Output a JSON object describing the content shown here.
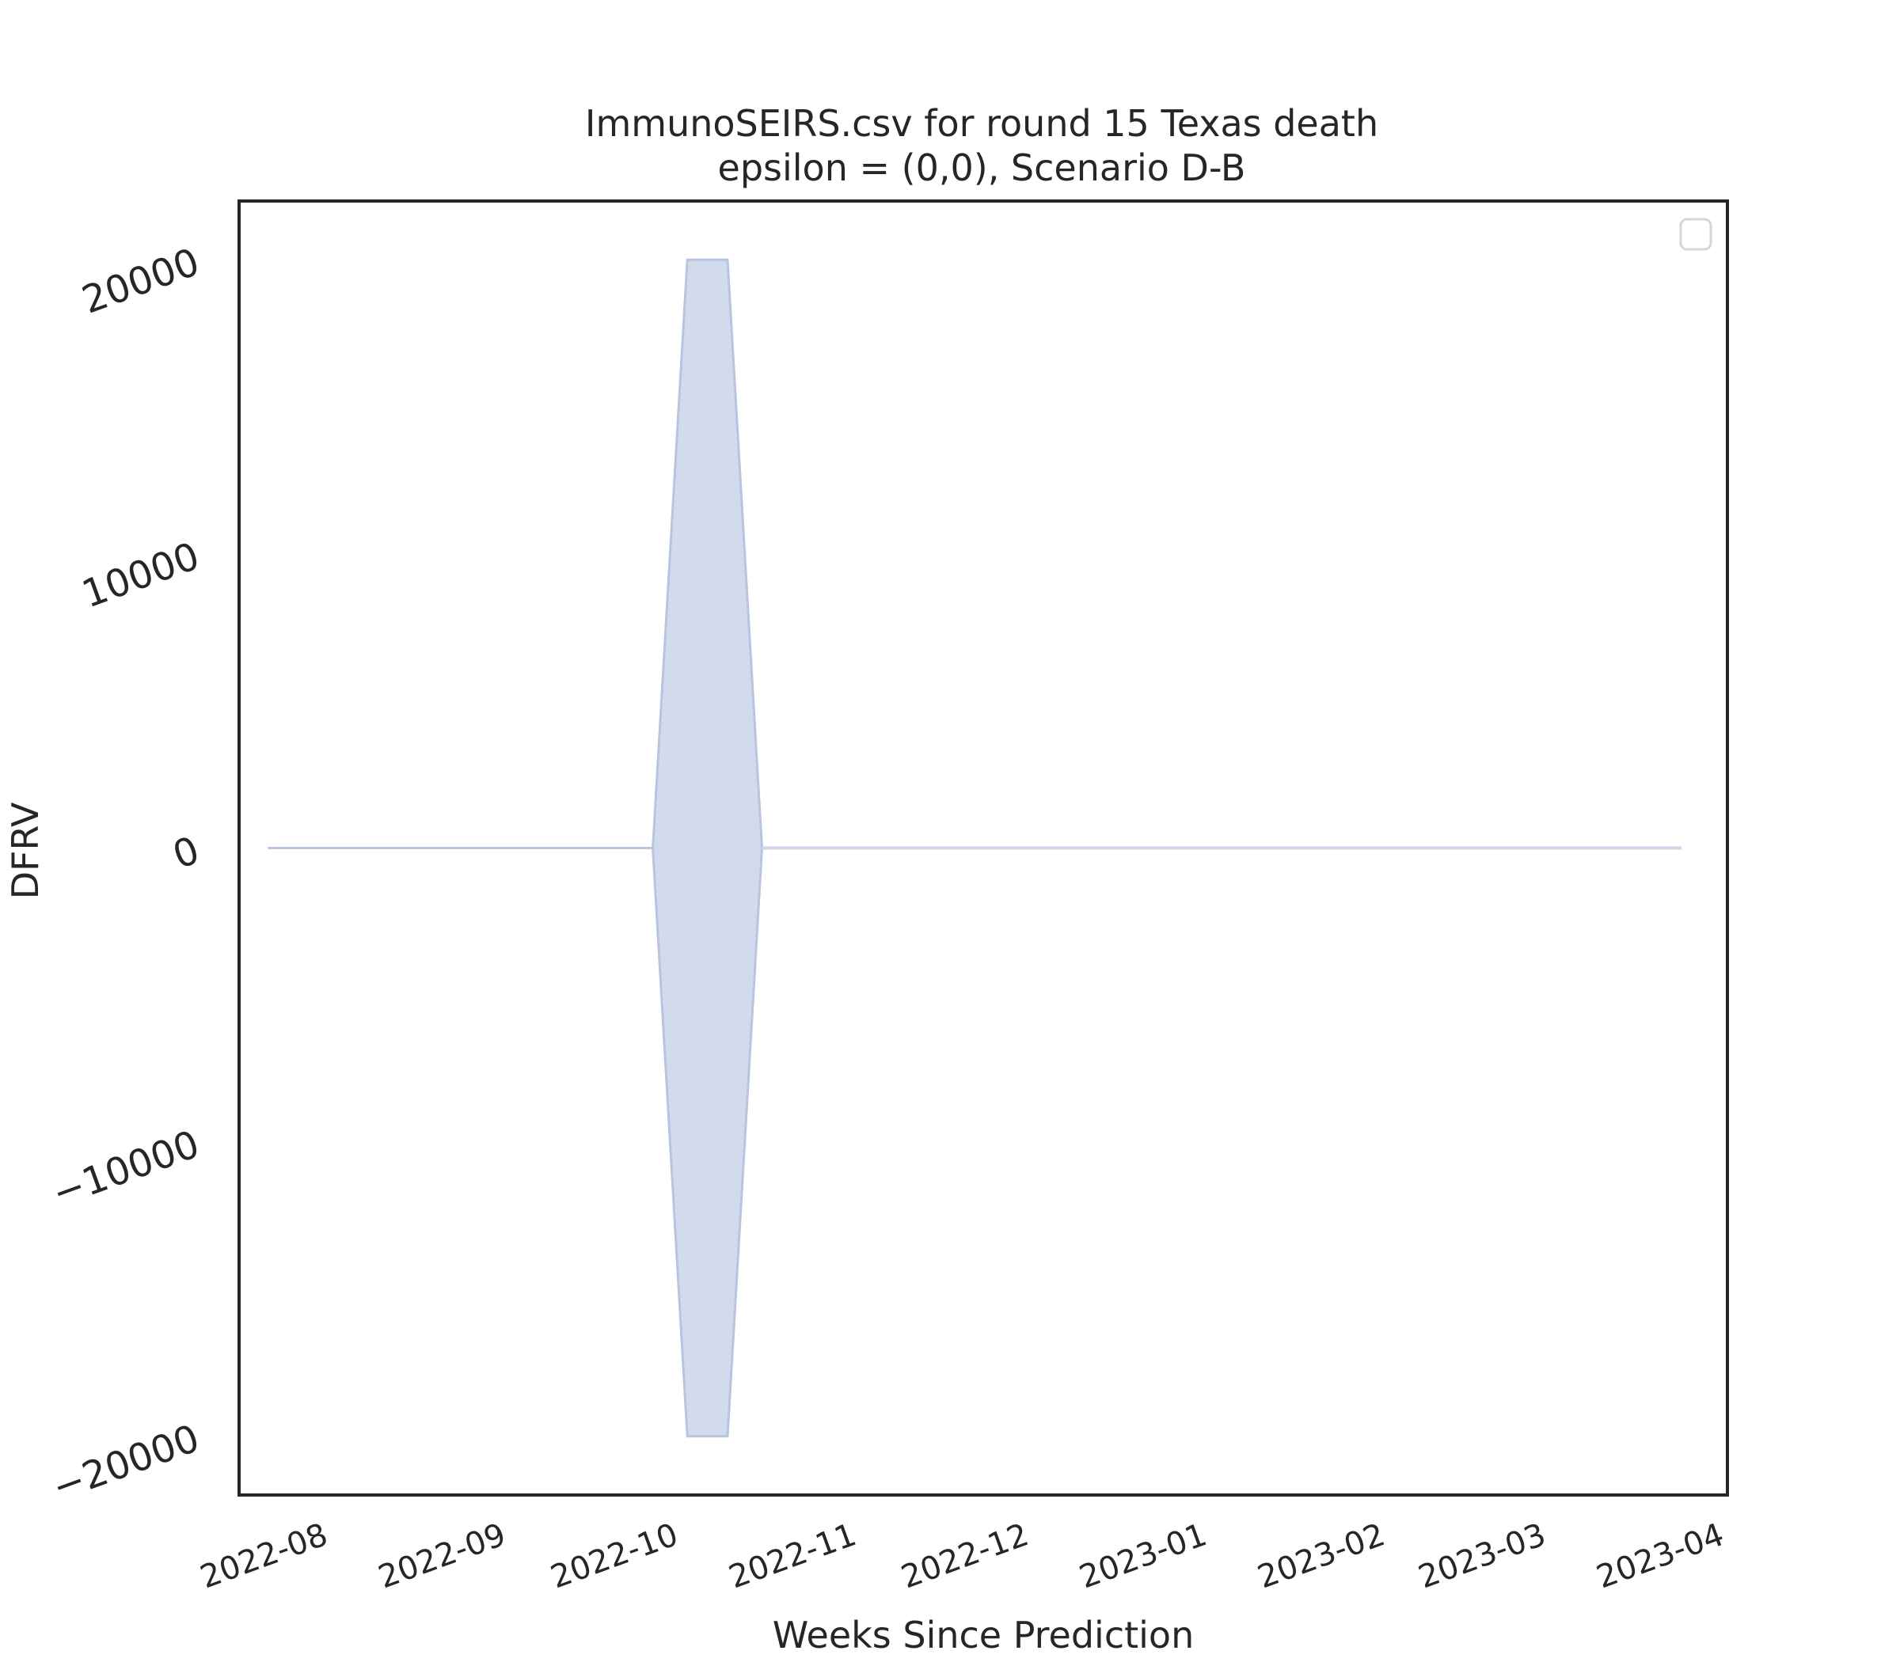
{
  "chart_data": {
    "type": "area",
    "title": [
      "ImmunoSEIRS.csv for round 15 Texas death",
      "epsilon = (0,0), Scenario D-B"
    ],
    "xlabel": "Weeks Since Prediction",
    "ylabel": "DFRV",
    "x_ticks": [
      "2022-08",
      "2022-09",
      "2022-10",
      "2022-11",
      "2022-12",
      "2023-01",
      "2023-02",
      "2023-03",
      "2023-04"
    ],
    "y_ticks": [
      -20000,
      -10000,
      0,
      10000,
      20000
    ],
    "xlim": [
      "2022-07-19",
      "2023-04-04"
    ],
    "ylim": [
      -22000,
      22000
    ],
    "grid": false,
    "legend": {
      "placement": "top-right",
      "entries": []
    },
    "series": [
      {
        "color": "#b8c5e0",
        "fill": "#d2dbeb",
        "x": [
          "2022-07-24",
          "2022-09-29",
          "2022-10-05",
          "2022-10-12",
          "2022-10-18"
        ],
        "upper": [
          0,
          0,
          20000,
          20000,
          0
        ],
        "lower": [
          0,
          0,
          -20000,
          -20000,
          0
        ]
      },
      {
        "color": "#cfd8ea",
        "x": [
          "2022-10-18",
          "2023-03-27"
        ],
        "upper": [
          0,
          0
        ],
        "lower": [
          0,
          0
        ]
      }
    ]
  }
}
